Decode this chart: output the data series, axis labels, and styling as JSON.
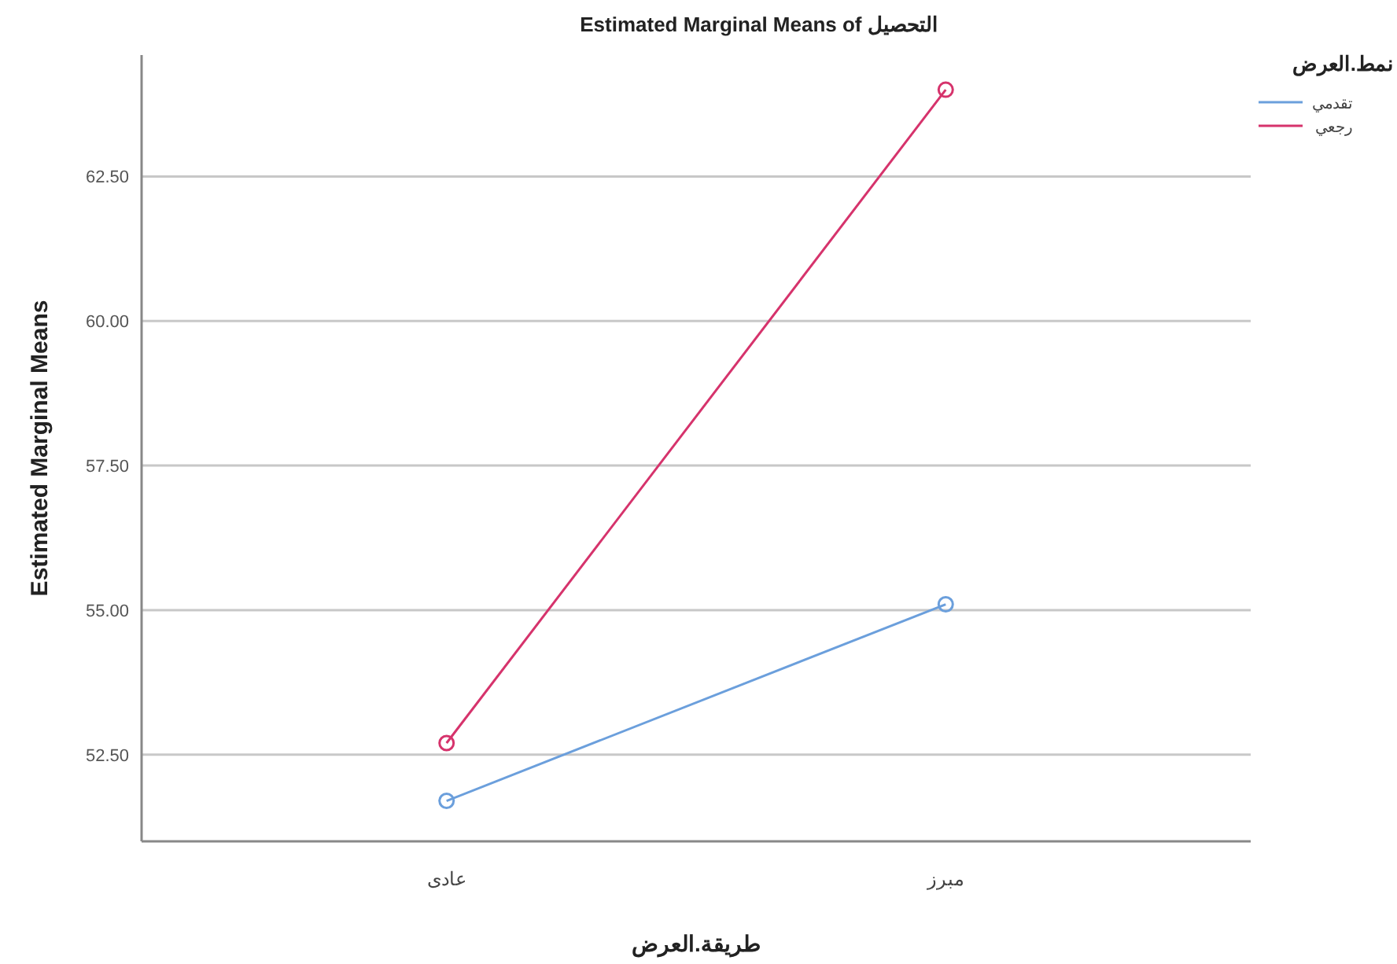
{
  "chart_data": {
    "type": "line",
    "title": "Estimated Marginal Means of التحصيل",
    "xlabel": "طريقة.العرض",
    "ylabel": "Estimated Marginal Means",
    "legend_title": "نمط.العرض",
    "categories": [
      "عادى",
      "مبرز"
    ],
    "series": [
      {
        "name": "تقدمي",
        "color": "#6b9fdc",
        "values": [
          51.7,
          55.1
        ]
      },
      {
        "name": "رجعي",
        "color": "#d6336c",
        "values": [
          52.7,
          64.0
        ]
      }
    ],
    "ylim": [
      51.0,
      64.6
    ],
    "yticks": [
      {
        "value": 52.5,
        "label": "52.50"
      },
      {
        "value": 55,
        "label": "55.00"
      },
      {
        "value": 57.5,
        "label": "57.50"
      },
      {
        "value": 60,
        "label": "60.00"
      },
      {
        "value": 62.5,
        "label": "62.50"
      }
    ],
    "grid": "y",
    "legend": "top right",
    "marker": "circle",
    "line_style": "solid"
  }
}
